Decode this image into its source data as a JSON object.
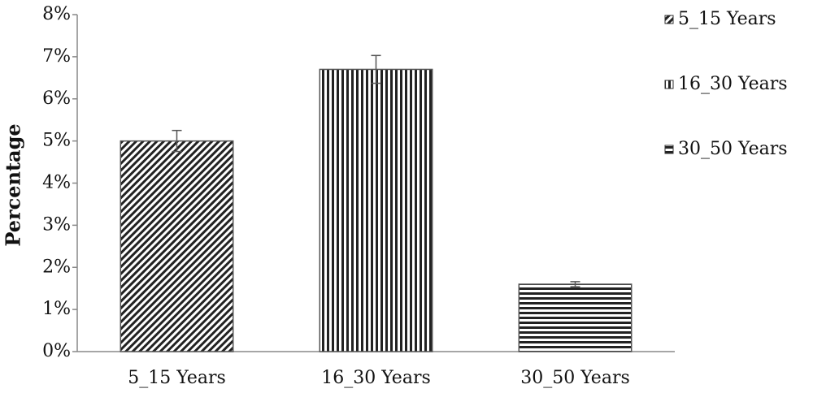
{
  "chart_data": {
    "type": "bar",
    "y_label": "Percentage",
    "categories": [
      "5_15 Years",
      "16_30 Years",
      "30_50 Years"
    ],
    "values": [
      5.0,
      6.7,
      1.6
    ],
    "errors": [
      0.25,
      0.33,
      0.06
    ],
    "patterns": [
      "diagonal",
      "vertical",
      "horizontal"
    ],
    "ylim": [
      0,
      8
    ],
    "yticks": [
      {
        "value": 0,
        "label": "0%"
      },
      {
        "value": 1,
        "label": "1%"
      },
      {
        "value": 2,
        "label": "2%"
      },
      {
        "value": 3,
        "label": "3%"
      },
      {
        "value": 4,
        "label": "4%"
      },
      {
        "value": 5,
        "label": "5%"
      },
      {
        "value": 6,
        "label": "6%"
      },
      {
        "value": 7,
        "label": "7%"
      },
      {
        "value": 8,
        "label": "8%"
      }
    ],
    "legend": "right"
  }
}
